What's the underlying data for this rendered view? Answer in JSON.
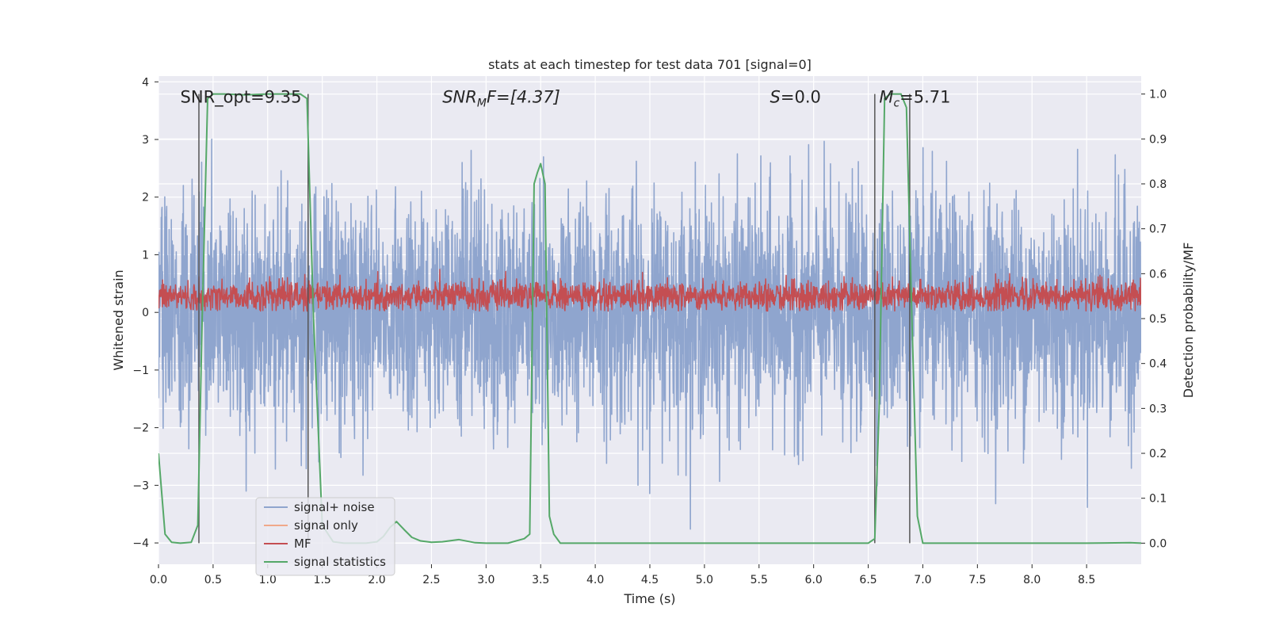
{
  "chart_data": {
    "type": "line",
    "title": "stats at each timestep for test data 701 [signal=0]",
    "xlabel": "Time (s)",
    "ylabel": "Whitened strain",
    "ylabel_right": "Detection probability/MF",
    "xlim": [
      0,
      9.0
    ],
    "ylim": [
      -4.37,
      4.1
    ],
    "ylim_right": [
      -0.047,
      1.04
    ],
    "x_ticks": [
      0.0,
      0.5,
      1.0,
      1.5,
      2.0,
      2.5,
      3.0,
      3.5,
      4.0,
      4.5,
      5.0,
      5.5,
      6.0,
      6.5,
      7.0,
      7.5,
      8.0,
      8.5
    ],
    "x_tick_labels": [
      "0.0",
      "0.5",
      "1.0",
      "1.5",
      "2.0",
      "2.5",
      "3.0",
      "3.5",
      "4.0",
      "4.5",
      "5.0",
      "5.5",
      "6.0",
      "6.5",
      "7.0",
      "7.5",
      "8.0",
      "8.5"
    ],
    "y_ticks": [
      -4,
      -3,
      -2,
      -1,
      0,
      1,
      2,
      3,
      4
    ],
    "y_tick_labels": [
      "−4",
      "−3",
      "−2",
      "−1",
      "0",
      "1",
      "2",
      "3",
      "4"
    ],
    "y_right_ticks": [
      0.0,
      0.1,
      0.2,
      0.3,
      0.4,
      0.5,
      0.6,
      0.7,
      0.8,
      0.9,
      1.0
    ],
    "y_right_tick_labels": [
      "0.0",
      "0.1",
      "0.2",
      "0.3",
      "0.4",
      "0.5",
      "0.6",
      "0.7",
      "0.8",
      "0.9",
      "1.0"
    ],
    "grid": true,
    "legend_position": "lower-left",
    "annotations": [
      {
        "text": "SNR_opt=9.35",
        "x": 0.2,
        "y": 3.75
      },
      {
        "text": "SNR",
        "sub": "M",
        "text_after": "F=[4.37]",
        "italic": true,
        "x": 2.6,
        "y": 3.75
      },
      {
        "text": "S",
        "text_after": "=0.0",
        "italic": true,
        "x": 5.6,
        "y": 3.75
      },
      {
        "text": "M",
        "sub": "c",
        "text_after": "=5.71",
        "italic": true,
        "x": 6.6,
        "y": 3.75
      }
    ],
    "vertical_markers": [
      0.37,
      1.37,
      6.56,
      6.88
    ],
    "series": [
      {
        "name": "signal+ noise",
        "color": "#8fa5ce",
        "axis": "left",
        "style": "dense noise",
        "band_sigma": 1.0,
        "min": -4.0,
        "max": 3.7
      },
      {
        "name": "signal only",
        "color": "#f0a88a",
        "axis": "left",
        "values": []
      },
      {
        "name": "MF",
        "color": "#c44e52",
        "axis": "left",
        "style": "dense noise",
        "mean": 0.28,
        "spread": 0.13,
        "max": 1.0
      },
      {
        "name": "signal statistics",
        "color": "#55a868",
        "axis": "right",
        "x": [
          0.0,
          0.06,
          0.12,
          0.2,
          0.3,
          0.36,
          0.4,
          0.45,
          0.5,
          0.6,
          0.8,
          1.0,
          1.2,
          1.3,
          1.36,
          1.42,
          1.5,
          1.6,
          1.7,
          1.8,
          1.9,
          2.0,
          2.06,
          2.12,
          2.18,
          2.25,
          2.32,
          2.4,
          2.5,
          2.6,
          2.75,
          2.9,
          3.0,
          3.2,
          3.35,
          3.4,
          3.44,
          3.47,
          3.5,
          3.54,
          3.58,
          3.62,
          3.68,
          3.8,
          4.0,
          5.0,
          6.0,
          6.5,
          6.56,
          6.6,
          6.65,
          6.7,
          6.75,
          6.8,
          6.85,
          6.9,
          6.95,
          7.0,
          7.1,
          7.5,
          8.0,
          8.5,
          8.9,
          9.0
        ],
        "values": [
          0.2,
          0.02,
          0.002,
          0.0,
          0.002,
          0.04,
          0.5,
          0.99,
          1.0,
          1.0,
          0.998,
          1.0,
          1.0,
          1.0,
          0.99,
          0.5,
          0.04,
          0.003,
          0.0,
          0.0,
          0.0,
          0.003,
          0.015,
          0.035,
          0.048,
          0.03,
          0.013,
          0.005,
          0.002,
          0.003,
          0.008,
          0.001,
          0.0,
          0.0,
          0.01,
          0.02,
          0.8,
          0.825,
          0.845,
          0.8,
          0.06,
          0.02,
          0.0,
          0.0,
          0.0,
          0.0,
          0.0,
          0.0,
          0.01,
          0.3,
          0.99,
          1.0,
          1.0,
          1.0,
          0.97,
          0.5,
          0.06,
          0.0,
          0.0,
          0.0,
          0.0,
          0.0,
          0.001,
          0.0
        ]
      }
    ]
  }
}
